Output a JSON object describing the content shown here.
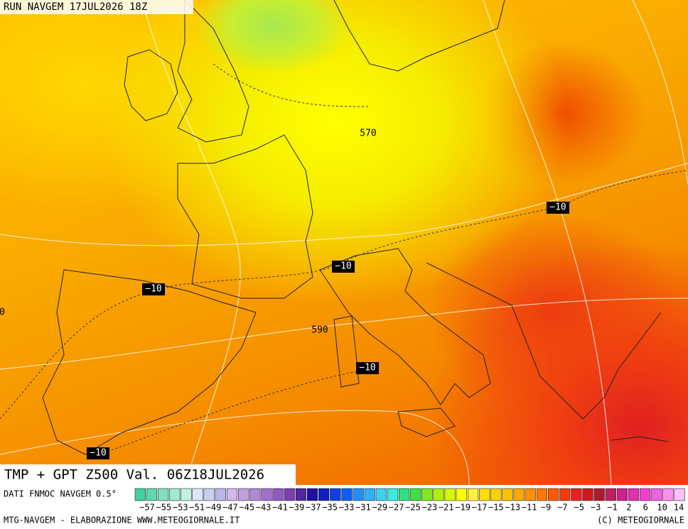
{
  "header": {
    "title": "RUN NAVGEM 17JUL2026 18Z"
  },
  "map": {
    "contour_labels": [
      "570",
      "590",
      "−10",
      "−10",
      "−10",
      "−10",
      "−10",
      "0"
    ]
  },
  "caption": "TMP + GPT Z500 Val. 06Z18JUL2026",
  "colorbar": {
    "title": "DATI FNMOC NAVGEM 0.5°",
    "labels": [
      "−57",
      "−55",
      "−53",
      "−51",
      "−49",
      "−47",
      "−45",
      "−43",
      "−41",
      "−39",
      "−37",
      "−35",
      "−33",
      "−31",
      "−29",
      "−27",
      "−25",
      "−23",
      "−21",
      "−19",
      "−17",
      "−15",
      "−13",
      "−11",
      "−9",
      "−7",
      "−5",
      "−3",
      "−1",
      "2",
      "6",
      "10",
      "14"
    ]
  },
  "footer": {
    "left": "MTG-NAVGEM - ELABORAZIONE WWW.METEOGIORNALE.IT",
    "right": "(C) METEOGIORNALE"
  }
}
